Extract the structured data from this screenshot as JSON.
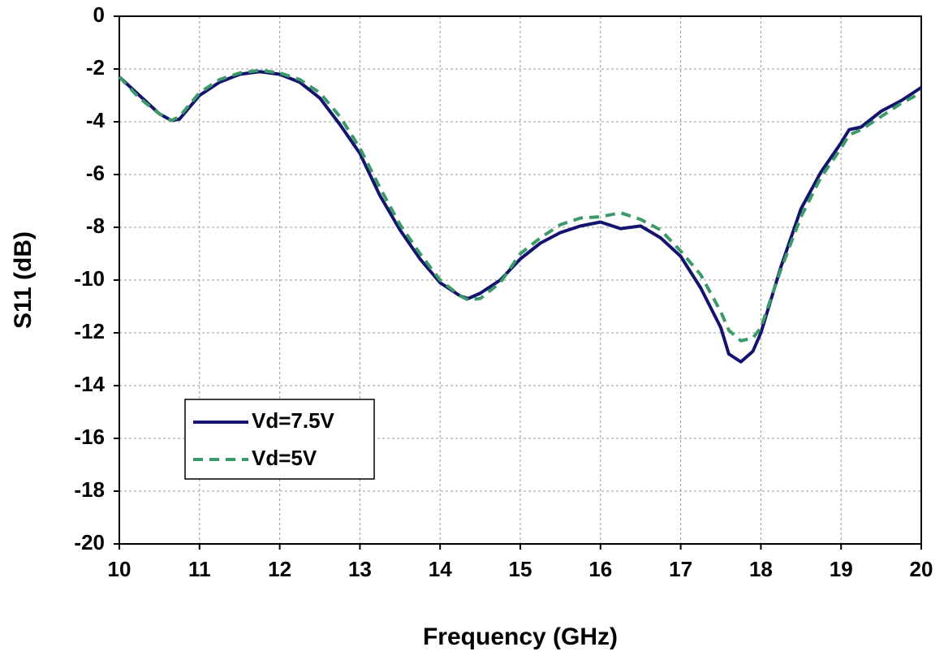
{
  "chart_data": {
    "type": "line",
    "xlabel": "Frequency (GHz)",
    "ylabel": "S11 (dB)",
    "x": [
      10,
      10.25,
      10.5,
      10.65,
      10.75,
      11,
      11.25,
      11.5,
      11.75,
      12,
      12.25,
      12.5,
      12.75,
      13,
      13.25,
      13.5,
      13.75,
      14,
      14.25,
      14.35,
      14.5,
      14.75,
      15,
      15.25,
      15.5,
      15.75,
      16,
      16.25,
      16.5,
      16.75,
      17,
      17.25,
      17.5,
      17.6,
      17.75,
      17.9,
      18,
      18.25,
      18.5,
      18.75,
      19,
      19.1,
      19.25,
      19.5,
      19.75,
      20
    ],
    "series": [
      {
        "name": "Vd=7.5V",
        "color": "#14146e",
        "dash": false,
        "values": [
          -2.3,
          -3.0,
          -3.7,
          -3.95,
          -3.9,
          -3.0,
          -2.5,
          -2.2,
          -2.1,
          -2.2,
          -2.5,
          -3.1,
          -4.1,
          -5.2,
          -6.8,
          -8.1,
          -9.2,
          -10.1,
          -10.6,
          -10.7,
          -10.5,
          -10.0,
          -9.2,
          -8.6,
          -8.2,
          -7.95,
          -7.8,
          -8.05,
          -7.95,
          -8.4,
          -9.1,
          -10.3,
          -11.8,
          -12.8,
          -13.1,
          -12.7,
          -12.0,
          -9.5,
          -7.3,
          -5.9,
          -4.8,
          -4.3,
          -4.2,
          -3.6,
          -3.2,
          -2.7
        ]
      },
      {
        "name": "Vd=5V",
        "color": "#3c9a6a",
        "dash": true,
        "values": [
          -2.3,
          -3.1,
          -3.7,
          -3.95,
          -3.8,
          -2.9,
          -2.4,
          -2.15,
          -2.05,
          -2.15,
          -2.4,
          -2.9,
          -3.8,
          -5.0,
          -6.5,
          -7.9,
          -9.0,
          -10.0,
          -10.6,
          -10.75,
          -10.7,
          -10.1,
          -9.0,
          -8.4,
          -7.9,
          -7.65,
          -7.6,
          -7.45,
          -7.7,
          -8.1,
          -8.9,
          -9.8,
          -11.2,
          -11.9,
          -12.3,
          -12.2,
          -11.8,
          -9.6,
          -7.6,
          -6.1,
          -5.0,
          -4.5,
          -4.3,
          -3.8,
          -3.3,
          -2.9
        ]
      }
    ],
    "xlim": [
      10,
      20
    ],
    "xticks": [
      10,
      11,
      12,
      13,
      14,
      15,
      16,
      17,
      18,
      19,
      20
    ],
    "ylim": [
      -20,
      0
    ],
    "yticks": [
      -20,
      -18,
      -16,
      -14,
      -12,
      -10,
      -8,
      -6,
      -4,
      -2,
      0
    ],
    "grid": true,
    "legend": "lower left"
  }
}
